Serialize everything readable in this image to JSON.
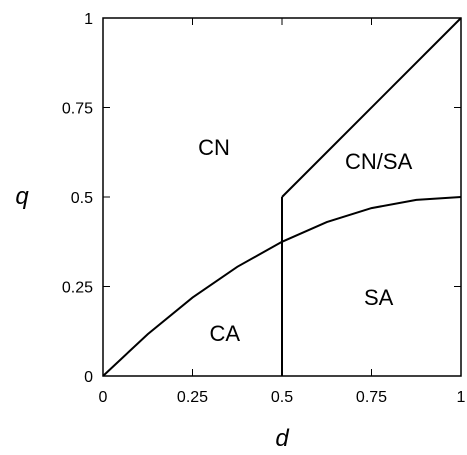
{
  "chart_data": {
    "type": "line",
    "title": "",
    "xlabel": "d",
    "ylabel": "q",
    "xlim": [
      0,
      1
    ],
    "ylim": [
      0,
      1
    ],
    "grid": false,
    "x_ticks": [
      "0",
      "0.25",
      "0.5",
      "0.75",
      "1"
    ],
    "y_ticks": [
      "0",
      "0.25",
      "0.5",
      "0.75",
      "1"
    ],
    "x_tick_values": [
      0,
      0.25,
      0.5,
      0.75,
      1
    ],
    "y_tick_values": [
      0,
      0.25,
      0.5,
      0.75,
      1
    ],
    "series": [
      {
        "x": [
          0,
          0.125,
          0.25,
          0.375,
          0.5,
          0.625,
          0.75,
          0.875,
          1
        ],
        "y": [
          0,
          0.117,
          0.219,
          0.305,
          0.375,
          0.43,
          0.469,
          0.492,
          0.5
        ]
      },
      {
        "x": [
          0.5,
          0.5
        ],
        "y": [
          0,
          0.5
        ]
      },
      {
        "x": [
          0.5,
          1
        ],
        "y": [
          0.5,
          1
        ]
      }
    ],
    "regions": [
      {
        "label": "CN",
        "x": 0.31,
        "y": 0.64
      },
      {
        "label": "CN/SA",
        "x": 0.77,
        "y": 0.6
      },
      {
        "label": "SA",
        "x": 0.77,
        "y": 0.22
      },
      {
        "label": "CA",
        "x": 0.34,
        "y": 0.12
      }
    ]
  }
}
